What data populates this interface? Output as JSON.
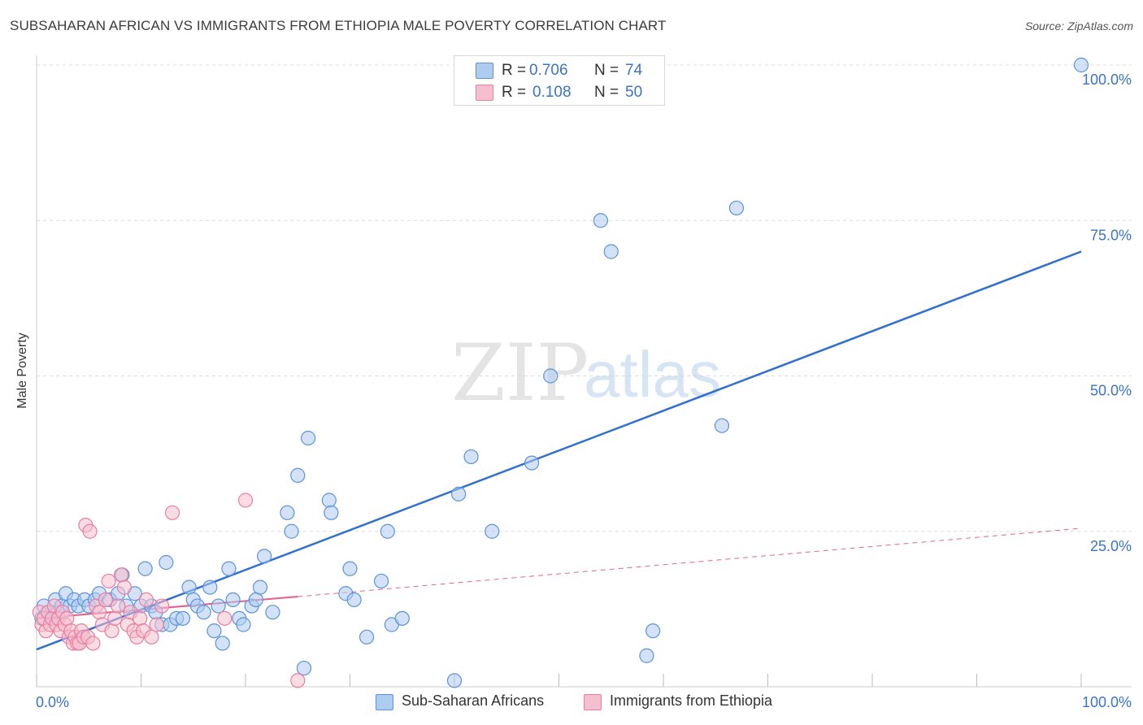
{
  "title": "SUBSAHARAN AFRICAN VS IMMIGRANTS FROM ETHIOPIA MALE POVERTY CORRELATION CHART",
  "source": "Source: ZipAtlas.com",
  "watermark": {
    "zip": "ZIP",
    "atlas": "atlas"
  },
  "colors": {
    "blue": "#5b93db",
    "blue_fill": "#aecbf0",
    "blue_line": "#2f6fd0",
    "pink": "#e87ea1",
    "pink_fill": "#f6bfd0",
    "pink_line": "#e0678e",
    "tick_text": "#3a74c4"
  },
  "legend_stats": [
    {
      "r_label": "R =",
      "r_value": "0.706",
      "n_label": "N =",
      "n_value": "74"
    },
    {
      "r_label": "R =",
      "r_value": "0.108",
      "n_label": "N =",
      "n_value": "50"
    }
  ],
  "chart_data": {
    "type": "scatter",
    "title": "SUBSAHARAN AFRICAN VS IMMIGRANTS FROM ETHIOPIA MALE POVERTY CORRELATION CHART",
    "xlabel": "",
    "ylabel": "Male Poverty",
    "xlim": [
      0,
      100
    ],
    "ylim": [
      0,
      100
    ],
    "x_tick_labels": [
      "0.0%",
      "100.0%"
    ],
    "y_tick_labels": [
      "100.0%",
      "75.0%",
      "50.0%",
      "25.0%"
    ],
    "y_tick_values": [
      100,
      75,
      50,
      25
    ],
    "grid": true,
    "series": [
      {
        "name": "Sub-Saharan Africans",
        "color": "#5b93db",
        "trendline": {
          "x": [
            0,
            100
          ],
          "y": [
            6,
            70
          ]
        },
        "points": [
          [
            0.5,
            11
          ],
          [
            0.7,
            13
          ],
          [
            1.2,
            12
          ],
          [
            1.4,
            11
          ],
          [
            1.8,
            14
          ],
          [
            2.0,
            12
          ],
          [
            2.4,
            13
          ],
          [
            2.8,
            15
          ],
          [
            3.2,
            13
          ],
          [
            3.6,
            14
          ],
          [
            4.0,
            13
          ],
          [
            4.6,
            14
          ],
          [
            5.0,
            13
          ],
          [
            5.6,
            14
          ],
          [
            6.0,
            15
          ],
          [
            7.0,
            14
          ],
          [
            7.8,
            15
          ],
          [
            8.2,
            18
          ],
          [
            8.6,
            13
          ],
          [
            9.4,
            15
          ],
          [
            10.0,
            13
          ],
          [
            10.4,
            19
          ],
          [
            11.0,
            13
          ],
          [
            11.4,
            12
          ],
          [
            12.0,
            10
          ],
          [
            12.4,
            20
          ],
          [
            12.8,
            10
          ],
          [
            13.4,
            11
          ],
          [
            14.0,
            11
          ],
          [
            14.6,
            16
          ],
          [
            15.0,
            14
          ],
          [
            15.4,
            13
          ],
          [
            16.0,
            12
          ],
          [
            16.6,
            16
          ],
          [
            17.0,
            9
          ],
          [
            17.4,
            13
          ],
          [
            17.8,
            7
          ],
          [
            18.4,
            19
          ],
          [
            18.8,
            14
          ],
          [
            19.4,
            11
          ],
          [
            19.8,
            10
          ],
          [
            20.6,
            13
          ],
          [
            21.0,
            14
          ],
          [
            21.4,
            16
          ],
          [
            21.8,
            21
          ],
          [
            22.6,
            12
          ],
          [
            24.0,
            28
          ],
          [
            24.4,
            25
          ],
          [
            25.0,
            34
          ],
          [
            25.6,
            3
          ],
          [
            26.0,
            40
          ],
          [
            28.0,
            30
          ],
          [
            28.2,
            28
          ],
          [
            29.6,
            15
          ],
          [
            30.0,
            19
          ],
          [
            30.4,
            14
          ],
          [
            31.6,
            8
          ],
          [
            33.0,
            17
          ],
          [
            33.6,
            25
          ],
          [
            34.0,
            10
          ],
          [
            35.0,
            11
          ],
          [
            40.0,
            1
          ],
          [
            40.4,
            31
          ],
          [
            41.6,
            37
          ],
          [
            43.6,
            25
          ],
          [
            47.4,
            36
          ],
          [
            49.2,
            50
          ],
          [
            54.0,
            75
          ],
          [
            55.0,
            70
          ],
          [
            58.4,
            5
          ],
          [
            59.0,
            9
          ],
          [
            65.6,
            42
          ],
          [
            67.0,
            77
          ],
          [
            100.0,
            100
          ]
        ]
      },
      {
        "name": "Immigrants from Ethiopia",
        "color": "#e87ea1",
        "trendline": {
          "x": [
            0,
            25,
            100
          ],
          "y": [
            11,
            14.5,
            25.5
          ],
          "solid_until_x": 25
        },
        "points": [
          [
            0.3,
            12
          ],
          [
            0.5,
            10
          ],
          [
            0.7,
            11
          ],
          [
            0.9,
            9
          ],
          [
            1.1,
            12
          ],
          [
            1.3,
            10
          ],
          [
            1.5,
            11
          ],
          [
            1.7,
            13
          ],
          [
            1.9,
            10
          ],
          [
            2.1,
            11
          ],
          [
            2.3,
            9
          ],
          [
            2.5,
            12
          ],
          [
            2.7,
            10
          ],
          [
            2.9,
            11
          ],
          [
            3.1,
            8
          ],
          [
            3.3,
            9
          ],
          [
            3.5,
            7
          ],
          [
            3.7,
            8
          ],
          [
            3.9,
            7
          ],
          [
            4.1,
            7
          ],
          [
            4.3,
            9
          ],
          [
            4.5,
            8
          ],
          [
            4.7,
            26
          ],
          [
            4.9,
            8
          ],
          [
            5.1,
            25
          ],
          [
            5.4,
            7
          ],
          [
            5.7,
            13
          ],
          [
            6.0,
            12
          ],
          [
            6.3,
            10
          ],
          [
            6.6,
            14
          ],
          [
            6.9,
            17
          ],
          [
            7.2,
            9
          ],
          [
            7.5,
            11
          ],
          [
            7.8,
            13
          ],
          [
            8.1,
            18
          ],
          [
            8.4,
            16
          ],
          [
            8.7,
            10
          ],
          [
            9.0,
            12
          ],
          [
            9.3,
            9
          ],
          [
            9.6,
            8
          ],
          [
            9.9,
            11
          ],
          [
            10.2,
            9
          ],
          [
            10.5,
            14
          ],
          [
            11.0,
            8
          ],
          [
            11.5,
            10
          ],
          [
            12.0,
            13
          ],
          [
            13.0,
            28
          ],
          [
            18.0,
            11
          ],
          [
            20.0,
            30
          ],
          [
            25.0,
            1
          ]
        ]
      }
    ]
  },
  "bottom_legend": [
    {
      "label": "Sub-Saharan Africans"
    },
    {
      "label": "Immigrants from Ethiopia"
    }
  ]
}
